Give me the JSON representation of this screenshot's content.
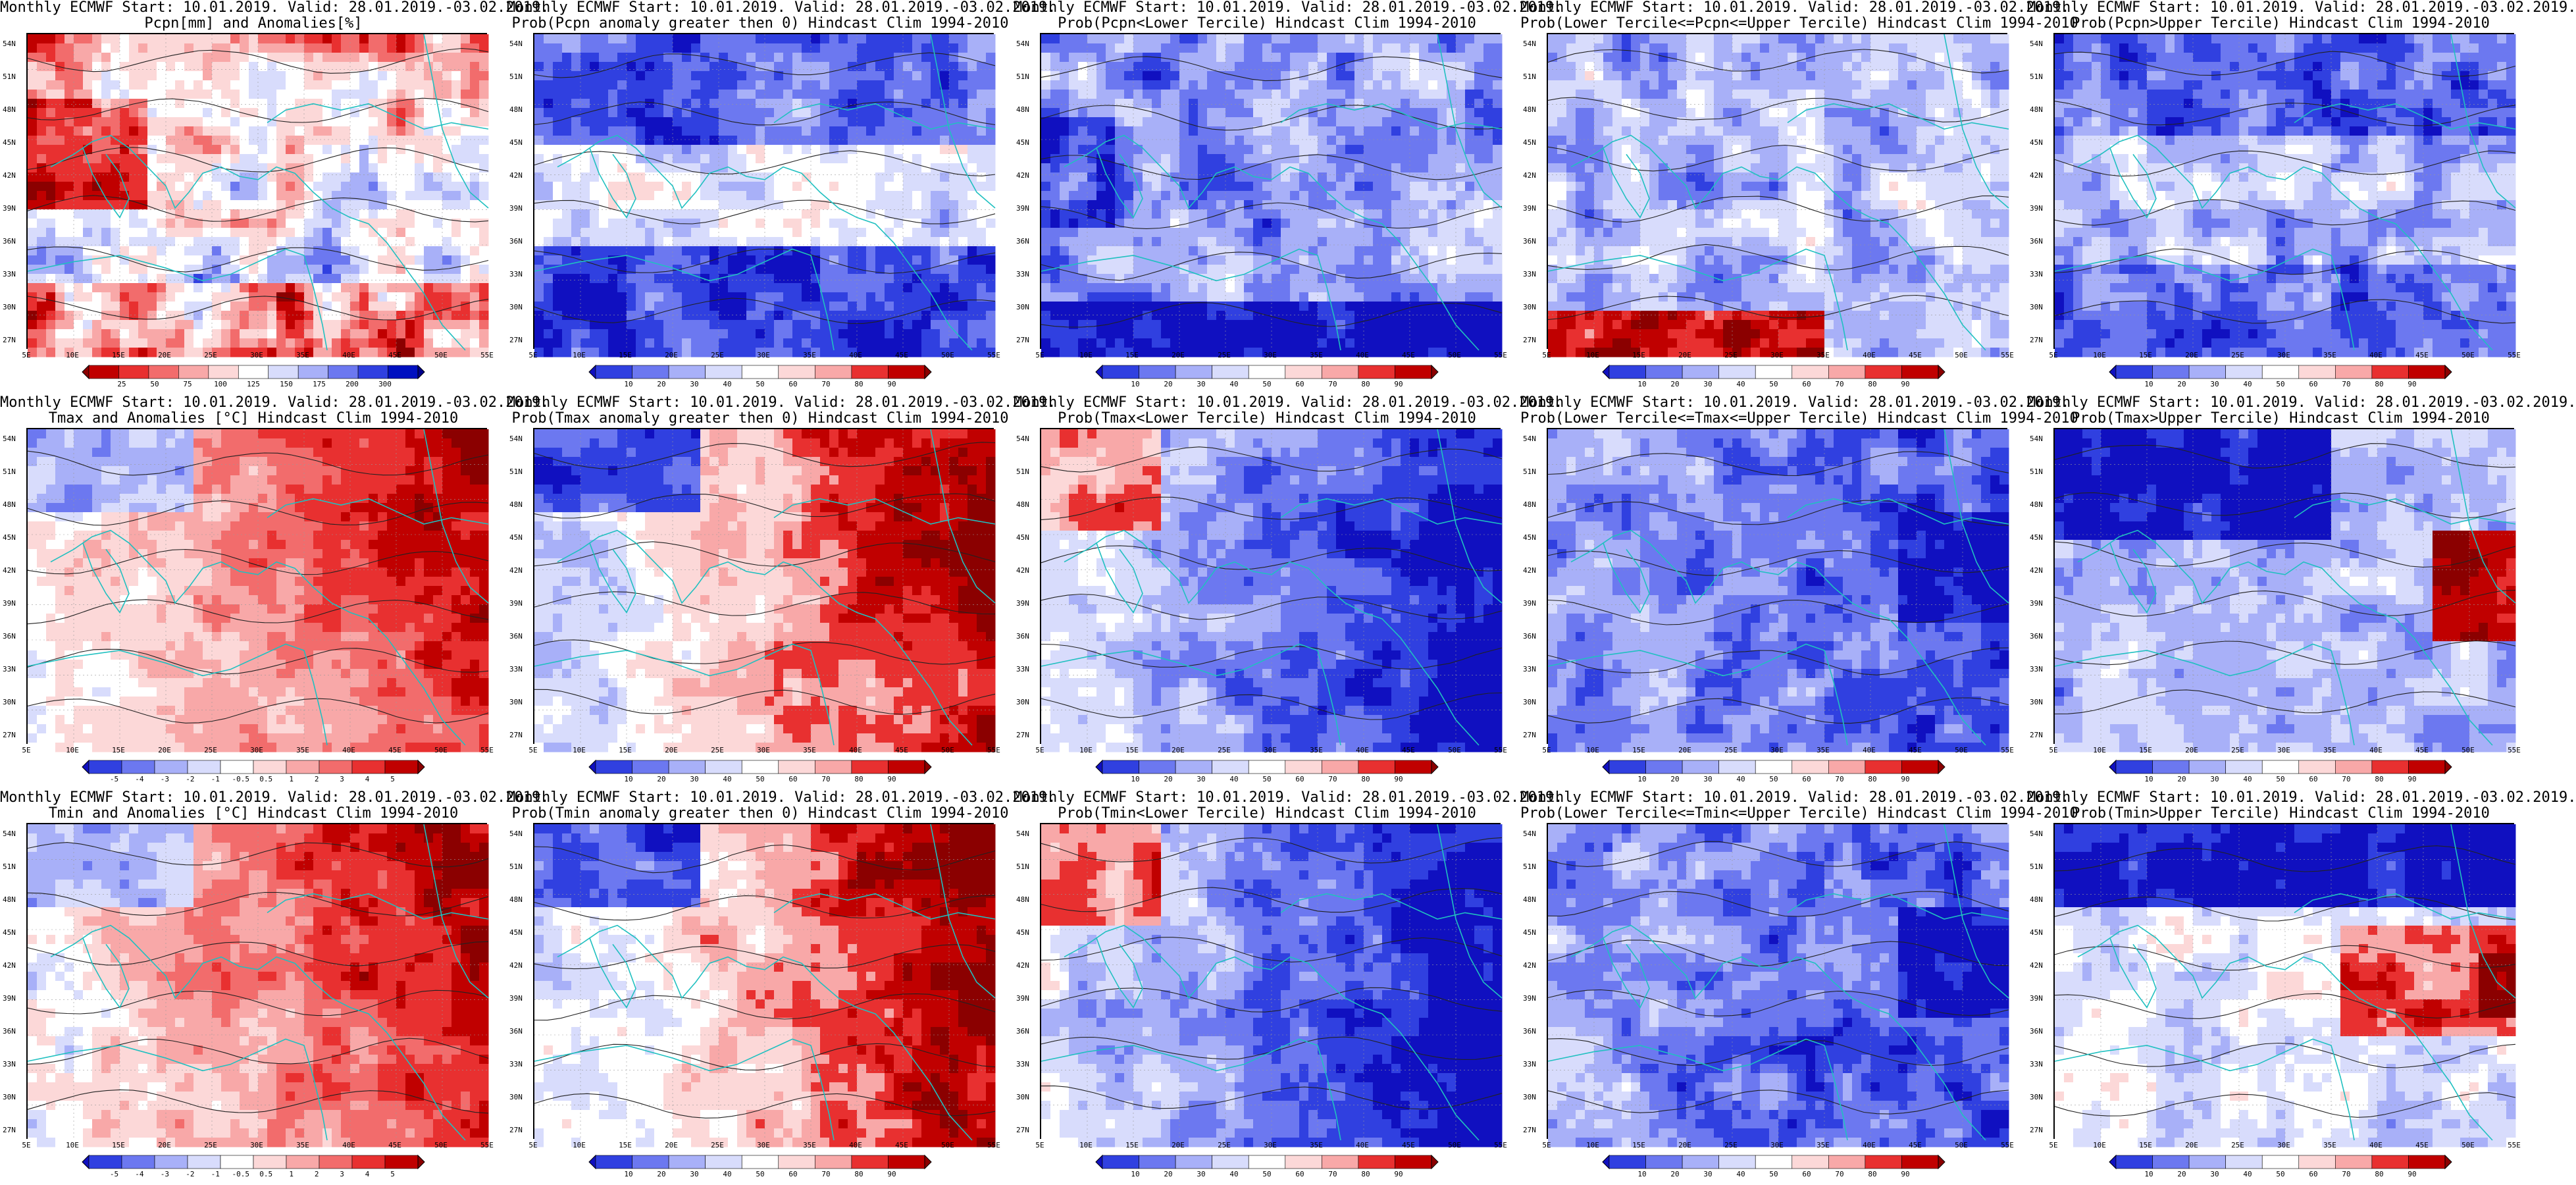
{
  "lat_labels": [
    "54N",
    "51N",
    "48N",
    "45N",
    "42N",
    "39N",
    "36N",
    "33N",
    "30N",
    "27N"
  ],
  "lon_labels": [
    "5E",
    "10E",
    "15E",
    "20E",
    "25E",
    "30E",
    "35E",
    "40E",
    "45E",
    "50E",
    "55E"
  ],
  "palettes": {
    "anom_pcpn": [
      "#8b0000",
      "#c00000",
      "#e83030",
      "#f26c6c",
      "#f8a8a8",
      "#fcd8d8",
      "#ffffff",
      "#d8dcfc",
      "#a8b0f8",
      "#6c78f0",
      "#3040e0",
      "#0010c0",
      "#00008b"
    ],
    "anom_temp": [
      "#1010c0",
      "#3040e0",
      "#6c78f0",
      "#a8b0f8",
      "#d8dcfc",
      "#ffffff",
      "#fcd8d8",
      "#f8a8a8",
      "#f26c6c",
      "#e83030",
      "#c00000",
      "#8b0000"
    ],
    "prob": [
      "#1010c0",
      "#3040e0",
      "#6c78f0",
      "#a8b0f8",
      "#d8dcfc",
      "#ffffff",
      "#fcd8d8",
      "#f8a8a8",
      "#e83030",
      "#c00000",
      "#8b0000"
    ]
  },
  "colorbar_ticks": {
    "anom_pcpn": [
      "25",
      "50",
      "75",
      "100",
      "125",
      "150",
      "175",
      "200",
      "300"
    ],
    "anom_temp": [
      "-5",
      "-4",
      "-3",
      "-2",
      "-1",
      "-0.5",
      "0.5",
      "1",
      "2",
      "3",
      "4",
      "5"
    ],
    "prob": [
      "10",
      "20",
      "30",
      "40",
      "50",
      "60",
      "70",
      "80",
      "90"
    ]
  },
  "panels": [
    {
      "title1": "Monthly ECMWF Start: 10.01.2019. Valid: 28.01.2019.-03.02.2019.",
      "title2": "Pcpn[mm] and Anomalies[%]",
      "palette": "anom_pcpn",
      "pattern": "pcpn_anom"
    },
    {
      "title1": "Monthly ECMWF Start: 10.01.2019. Valid: 28.01.2019.-03.02.2019.",
      "title2": "Prob(Pcpn anomaly greater then 0) Hindcast Clim 1994-2010",
      "palette": "prob",
      "pattern": "pcpn_pos"
    },
    {
      "title1": "Monthly ECMWF Start: 10.01.2019. Valid: 28.01.2019.-03.02.2019.",
      "title2": "Prob(Pcpn<Lower Tercile) Hindcast Clim 1994-2010",
      "palette": "prob",
      "pattern": "pcpn_low"
    },
    {
      "title1": "Monthly ECMWF Start: 10.01.2019. Valid: 28.01.2019.-03.02.2019.",
      "title2": "Prob(Lower Tercile<=Pcpn<=Upper Tercile) Hindcast Clim 1994-2010",
      "palette": "prob",
      "pattern": "pcpn_mid"
    },
    {
      "title1": "Monthly ECMWF Start: 10.01.2019. Valid: 28.01.2019.-03.02.2019.",
      "title2": "Prob(Pcpn>Upper Tercile) Hindcast Clim 1994-2010",
      "palette": "prob",
      "pattern": "pcpn_up"
    },
    {
      "title1": "Monthly ECMWF Start: 10.01.2019. Valid: 28.01.2019.-03.02.2019.",
      "title2": "Tmax and Anomalies [°C] Hindcast Clim 1994-2010",
      "palette": "anom_temp",
      "pattern": "t_anom"
    },
    {
      "title1": "Monthly ECMWF Start: 10.01.2019. Valid: 28.01.2019.-03.02.2019.",
      "title2": "Prob(Tmax anomaly greater then 0) Hindcast Clim 1994-2010",
      "palette": "prob",
      "pattern": "t_pos"
    },
    {
      "title1": "Monthly ECMWF Start: 10.01.2019. Valid: 28.01.2019.-03.02.2019.",
      "title2": "Prob(Tmax<Lower Tercile) Hindcast Clim 1994-2010",
      "palette": "prob",
      "pattern": "t_low"
    },
    {
      "title1": "Monthly ECMWF Start: 10.01.2019. Valid: 28.01.2019.-03.02.2019.",
      "title2": "Prob(Lower Tercile<=Tmax<=Upper Tercile) Hindcast Clim 1994-2010",
      "palette": "prob",
      "pattern": "t_mid"
    },
    {
      "title1": "Monthly ECMWF Start: 10.01.2019. Valid: 28.01.2019.-03.02.2019.",
      "title2": "Prob(Tmax>Upper Tercile) Hindcast Clim 1994-2010",
      "palette": "prob",
      "pattern": "t_up"
    },
    {
      "title1": "Monthly ECMWF Start: 10.01.2019. Valid: 28.01.2019.-03.02.2019.",
      "title2": "Tmin and Anomalies [°C] Hindcast Clim 1994-2010",
      "palette": "anom_temp",
      "pattern": "t_anom"
    },
    {
      "title1": "Monthly ECMWF Start: 10.01.2019. Valid: 28.01.2019.-03.02.2019.",
      "title2": "Prob(Tmin anomaly greater then 0) Hindcast Clim 1994-2010",
      "palette": "prob",
      "pattern": "t_pos"
    },
    {
      "title1": "Monthly ECMWF Start: 10.01.2019. Valid: 28.01.2019.-03.02.2019.",
      "title2": "Prob(Tmin<Lower Tercile) Hindcast Clim 1994-2010",
      "palette": "prob",
      "pattern": "t_low"
    },
    {
      "title1": "Monthly ECMWF Start: 10.01.2019. Valid: 28.01.2019.-03.02.2019.",
      "title2": "Prob(Lower Tercile<=Tmin<=Upper Tercile) Hindcast Clim 1994-2010",
      "palette": "prob",
      "pattern": "t_mid"
    },
    {
      "title1": "Monthly ECMWF Start: 10.01.2019. Valid: 28.01.2019.-03.02.2019.",
      "title2": "Prob(Tmin>Upper Tercile) Hindcast Clim 1994-2010",
      "palette": "prob",
      "pattern": "t_up2"
    }
  ]
}
